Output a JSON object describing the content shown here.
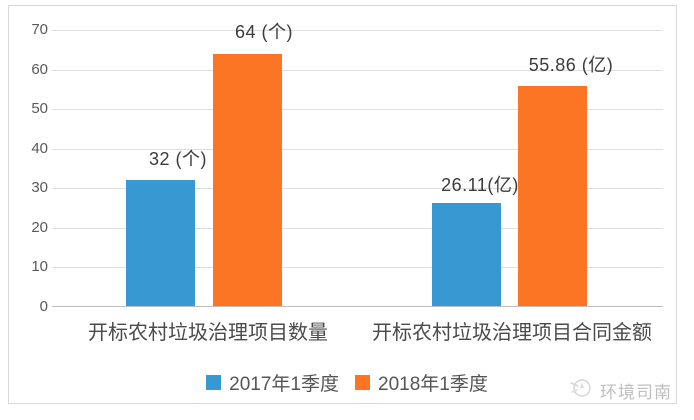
{
  "chart_data": {
    "type": "bar",
    "categories": [
      "开标农村垃圾治理项目数量",
      "开标农村垃圾治理项目合同金额"
    ],
    "series": [
      {
        "name": "2017年1季度",
        "color": "#3899d2",
        "values": [
          32,
          26.11
        ]
      },
      {
        "name": "2018年1季度",
        "color": "#fb7524",
        "values": [
          64,
          55.86
        ]
      }
    ],
    "data_labels": [
      [
        "32 (个)",
        "26.11(亿)"
      ],
      [
        "64 (个)",
        "55.86 (亿)"
      ]
    ],
    "yticks": [
      "70",
      "60",
      "50",
      "40",
      "30",
      "20",
      "10",
      "0"
    ],
    "ylim": [
      0,
      70
    ],
    "grid": true,
    "legend_position": "bottom",
    "units": [
      "个",
      "亿"
    ]
  },
  "watermark": {
    "text": "环境司南"
  },
  "colors": {
    "series_2017": "#3899d2",
    "series_2018": "#fb7524",
    "gridline": "#dedede",
    "axis_line": "#bdbdbd",
    "tick_text": "#595959",
    "label_text": "#3b3b3b",
    "frame_border": "#d9d9d9",
    "watermark_text": "#bfbfbf"
  }
}
